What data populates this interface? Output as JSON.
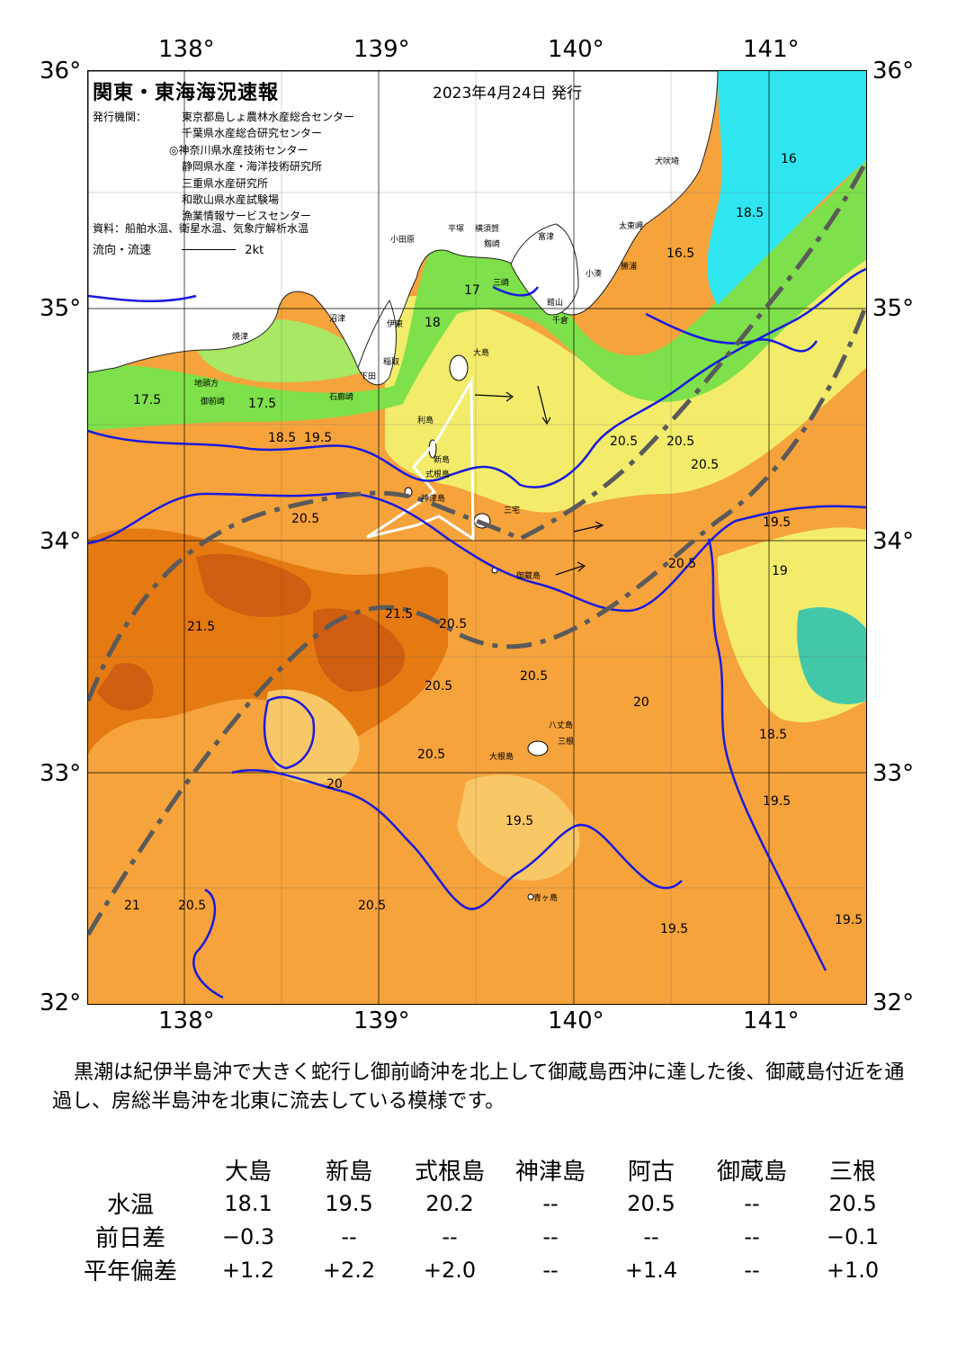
{
  "map": {
    "title": "関東・東海海況速報",
    "issue_date": "2023年4月24日 発行",
    "issuers_label": "発行機関：",
    "issuers": [
      "東京都島しょ農林水産総合センター",
      "千葉県水産総合研究センター",
      "◎神奈川県水産技術センター",
      "静岡県水産・海洋技術研究所",
      "三重県水産研究所",
      "和歌山県水産試験場",
      "漁業情報サービスセンター"
    ],
    "source": "資料：船舶水温、衛星水温、気象庁解析水温",
    "flow_legend": "流向・流速",
    "flow_scale": "2kt",
    "lon_labels": [
      "138°",
      "139°",
      "140°",
      "141°"
    ],
    "lat_labels": [
      "36°",
      "35°",
      "34°",
      "33°",
      "32°"
    ],
    "place_names": [
      "犬吠埼",
      "太東岬",
      "勝浦",
      "小湊",
      "館山",
      "千倉",
      "富津",
      "横須賀",
      "城ヶ島",
      "剱崎",
      "三崎",
      "平塚",
      "小田原",
      "沼津",
      "伊東",
      "稲取",
      "下田",
      "石廊崎",
      "御前崎",
      "地頭方",
      "焼津",
      "利島",
      "新島",
      "式根島",
      "神津島",
      "三宅島",
      "御蔵島",
      "八丈島",
      "大根島",
      "三根",
      "大島",
      "三宅",
      "青ヶ島",
      "雲見",
      "大根"
    ],
    "isotherm_labels": [
      "16",
      "16.5",
      "17",
      "17.5",
      "18",
      "18.5",
      "19",
      "19.5",
      "20",
      "20.5",
      "21",
      "21.5"
    ],
    "colors": {
      "cold": "#2fe6f0",
      "cool": "#7ee04a",
      "mild": "#f2ec6a",
      "warm": "#f6a33c",
      "hot": "#e57a12",
      "hottest": "#cf5e10",
      "land": "#ffffff",
      "isotherm_blue": "#1a1adf",
      "kuroshio_axis": "#5a5a5a"
    }
  },
  "summary": "黒潮は紀伊半島沖で大きく蛇行し御前崎沖を北上して御蔵島西沖に達した後、御蔵島付近を通過し、房総半島沖を北東に流去している模様です。",
  "table": {
    "columns": [
      "大島",
      "新島",
      "式根島",
      "神津島",
      "阿古",
      "御蔵島",
      "三根"
    ],
    "rows": [
      {
        "label": "水温",
        "values": [
          "18.1",
          "19.5",
          "20.2",
          "--",
          "20.5",
          "--",
          "20.5"
        ]
      },
      {
        "label": "前日差",
        "values": [
          "−0.3",
          "--",
          "--",
          "--",
          "--",
          "--",
          "−0.1"
        ]
      },
      {
        "label": "平年偏差",
        "values": [
          "+1.2",
          "+2.2",
          "+2.0",
          "--",
          "+1.4",
          "--",
          "+1.0"
        ]
      }
    ]
  }
}
